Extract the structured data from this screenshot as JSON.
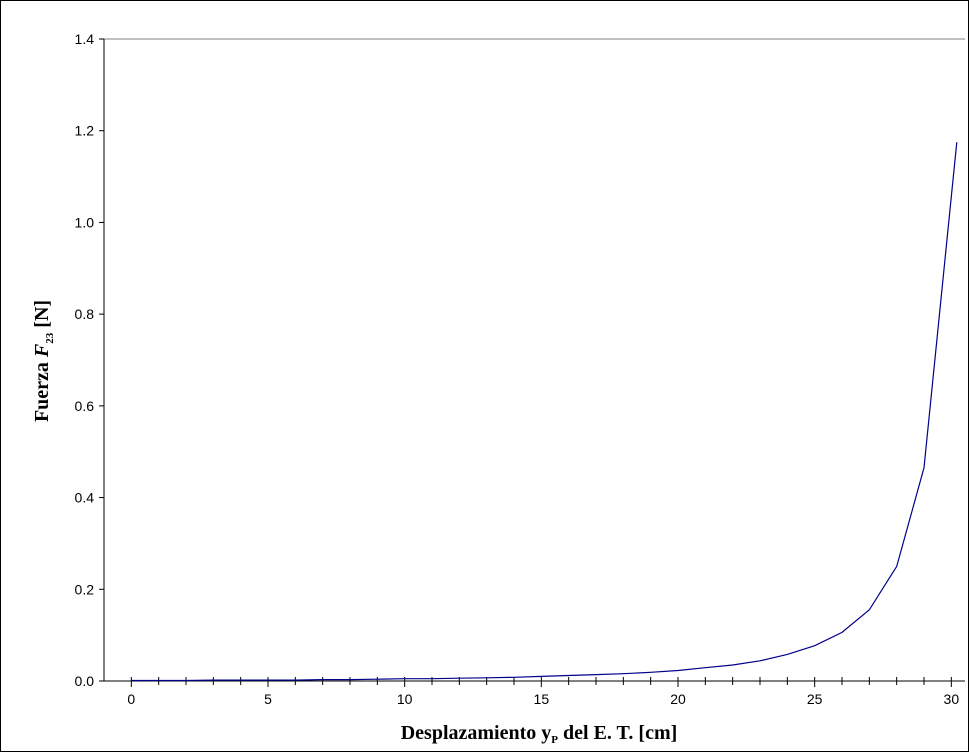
{
  "chart_data": {
    "type": "line",
    "title": "",
    "xlabel": {
      "prefix": "Desplazamiento y",
      "subscript": "P",
      "suffix": " del E. T. [cm]"
    },
    "ylabel": {
      "prefix": "Fuerza ",
      "italic": "F",
      "subscript": "23",
      "suffix": " [N]"
    },
    "xlim": [
      -1,
      30.5
    ],
    "ylim": [
      0,
      1.4
    ],
    "x_ticks": [
      0,
      5,
      10,
      15,
      20,
      25,
      30
    ],
    "x_tick_labels": [
      "0",
      "5",
      "10",
      "15",
      "20",
      "25",
      "30"
    ],
    "y_ticks": [
      0,
      0.2,
      0.4,
      0.6,
      0.8,
      1.0,
      1.2,
      1.4
    ],
    "y_tick_labels": [
      "0.0",
      "0.2",
      "0.4",
      "0.6",
      "0.8",
      "1.0",
      "1.2",
      "1.4"
    ],
    "grid": "horizontal line at top only",
    "series": [
      {
        "color": "#00008b",
        "x": [
          0,
          1,
          2,
          3,
          4,
          5,
          6,
          7,
          8,
          9,
          10,
          11,
          12,
          13,
          14,
          15,
          16,
          17,
          18,
          19,
          20,
          21,
          22,
          23,
          24,
          25,
          26,
          27,
          28,
          29,
          30.2
        ],
        "y": [
          0.001,
          0.001,
          0.001,
          0.002,
          0.002,
          0.002,
          0.002,
          0.003,
          0.003,
          0.004,
          0.005,
          0.005,
          0.006,
          0.007,
          0.008,
          0.01,
          0.012,
          0.014,
          0.016,
          0.019,
          0.023,
          0.029,
          0.035,
          0.044,
          0.058,
          0.077,
          0.106,
          0.155,
          0.25,
          0.465,
          1.175
        ]
      }
    ]
  }
}
